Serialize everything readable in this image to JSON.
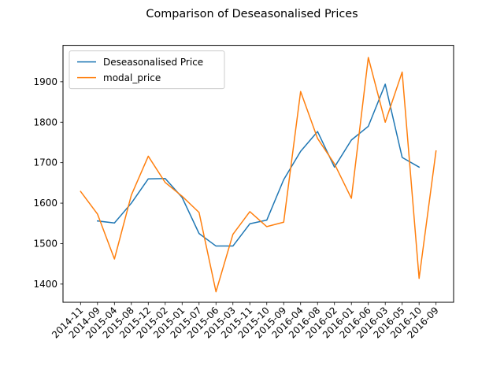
{
  "chart_data": {
    "type": "line",
    "title": "Comparison of Deseasonalised Prices",
    "xlabel": "",
    "ylabel": "",
    "categories": [
      "2014-11",
      "2014-09",
      "2015-04",
      "2015-08",
      "2015-12",
      "2015-02",
      "2015-01",
      "2015-07",
      "2015-06",
      "2015-03",
      "2015-11",
      "2015-10",
      "2015-09",
      "2016-04",
      "2016-08",
      "2016-02",
      "2016-01",
      "2016-06",
      "2016-03",
      "2016-05",
      "2016-10",
      "2016-09"
    ],
    "ylim": [
      1355,
      1990
    ],
    "yticks": [
      1400,
      1500,
      1600,
      1700,
      1800,
      1900
    ],
    "grid": false,
    "legend_position": "top-left",
    "series": [
      {
        "name": "Deseasonalised Price",
        "color": "#1f77b4",
        "values": [
          null,
          1556,
          1551,
          1600,
          1660,
          1661,
          1614,
          1525,
          1494,
          1494,
          1549,
          1558,
          1658,
          1728,
          1777,
          1689,
          1756,
          1790,
          1894,
          1713,
          1689,
          null
        ]
      },
      {
        "name": "modal_price",
        "color": "#ff7f0e",
        "values": [
          1629,
          1573,
          1462,
          1620,
          1716,
          1651,
          1617,
          1577,
          1381,
          1523,
          1579,
          1542,
          1553,
          1876,
          1760,
          1697,
          1612,
          1960,
          1800,
          1924,
          1414,
          1729
        ]
      }
    ]
  }
}
